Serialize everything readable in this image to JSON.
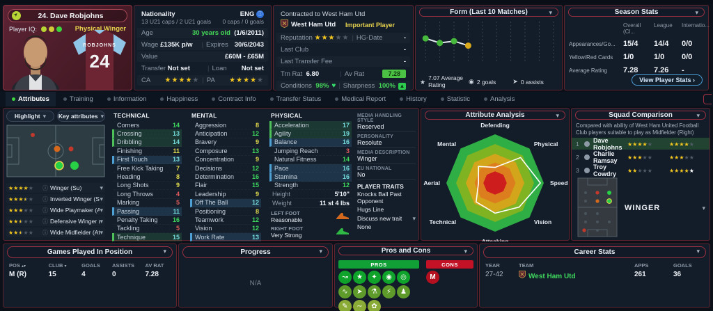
{
  "player_card": {
    "name": "24. Dave Robjohns",
    "iq_label": "Player IQ:",
    "iq_dots": [
      "#b8d435",
      "#d2c838",
      "#3cd43c"
    ],
    "role": "Physical Winger",
    "shirt_name": "ROBJOHNS",
    "shirt_number": "24"
  },
  "info_panel": {
    "nationality_label": "Nationality",
    "u21_caps": "13 U21 caps / 2 U21 goals",
    "nation_code": "ENG",
    "senior_caps": "0 caps / 0 goals",
    "age_label": "Age",
    "age": "30 years old",
    "dob": "(1/6/2011)",
    "wage_label": "Wage",
    "wage": "£135K p/w",
    "expires_label": "Expires",
    "expires": "30/6/2043",
    "value_label": "Value",
    "value": "£60M - £65M",
    "transfer_label": "Transfer",
    "transfer": "Not set",
    "loan_label": "Loan",
    "loan": "Not set",
    "ca_label": "CA",
    "ca_stars": 4,
    "pa_label": "PA",
    "pa_stars": 4,
    "stars_max": 5
  },
  "contract_panel": {
    "header": "Contracted to West Ham Utd",
    "club": "West Ham Utd",
    "status": "Important Player",
    "reputation_label": "Reputation",
    "reputation_stars": 3,
    "hg_label": "HG-Date",
    "hg_value": "-",
    "last_club_label": "Last Club",
    "last_club_value": "-",
    "last_fee_label": "Last Transfer Fee",
    "last_fee_value": "-",
    "trn_rat_label": "Trn Rat",
    "trn_rat": "6.80",
    "av_rat_label": "Av Rat",
    "av_rat": "7.28",
    "conditions_label": "Conditions",
    "conditions": "98%",
    "sharpness_label": "Sharpness",
    "sharpness": "100%"
  },
  "form_panel": {
    "title": "Form (Last 10 Matches)",
    "avg_rating": "7.07 Average Rating",
    "goals": "2 goals",
    "assists": "0 assists"
  },
  "season_stats": {
    "title": "Season Stats",
    "columns": [
      "Overall (Cl...",
      "League",
      "Internatio..."
    ],
    "rows": [
      {
        "label": "Appearances/Go...",
        "values": [
          "15/4",
          "14/4",
          "0/0"
        ]
      },
      {
        "label": "Yellow/Red Cards",
        "values": [
          "1/0",
          "1/0",
          "0/0"
        ]
      },
      {
        "label": "Average Rating",
        "values": [
          "7.28",
          "7.26",
          "-"
        ]
      }
    ],
    "button": "View Player Stats ›"
  },
  "tabs": [
    {
      "label": "Attributes",
      "active": true
    },
    {
      "label": "Training"
    },
    {
      "label": "Information"
    },
    {
      "label": "Happiness"
    },
    {
      "label": "Contract Info"
    },
    {
      "label": "Transfer Status"
    },
    {
      "label": "Medical Report"
    },
    {
      "label": "History"
    },
    {
      "label": "Statistic"
    },
    {
      "label": "Analysis"
    }
  ],
  "left_panel": {
    "highlight": "Highlight",
    "key_attributes": "Key attributes",
    "positions": [
      {
        "stars": 4,
        "half": 0,
        "label": "Winger (Su)"
      },
      {
        "stars": 3,
        "half": 1,
        "label": "Inverted Winger (Su)"
      },
      {
        "stars": 3,
        "half": 0,
        "label": "Wide Playmaker (At)"
      },
      {
        "stars": 2,
        "half": 1,
        "label": "Defensive Winger (Su)"
      },
      {
        "stars": 2,
        "half": 1,
        "label": "Wide Midfielder (At)"
      }
    ]
  },
  "attributes": {
    "technical_title": "TECHNICAL",
    "technical": [
      {
        "name": "Corners",
        "value": 14
      },
      {
        "name": "Crossing",
        "value": 13,
        "hl": "green"
      },
      {
        "name": "Dribbling",
        "value": 14,
        "hl": "green"
      },
      {
        "name": "Finishing",
        "value": 11
      },
      {
        "name": "First Touch",
        "value": 13,
        "hl": "blue"
      },
      {
        "name": "Free Kick Taking",
        "value": 7
      },
      {
        "name": "Heading",
        "value": 8
      },
      {
        "name": "Long Shots",
        "value": 9
      },
      {
        "name": "Long Throws",
        "value": 4
      },
      {
        "name": "Marking",
        "value": 5
      },
      {
        "name": "Passing",
        "value": 11,
        "hl": "blue"
      },
      {
        "name": "Penalty Taking",
        "value": 16
      },
      {
        "name": "Tackling",
        "value": 5
      },
      {
        "name": "Technique",
        "value": 15,
        "hl": "green"
      }
    ],
    "mental_title": "MENTAL",
    "mental": [
      {
        "name": "Aggression",
        "value": 8
      },
      {
        "name": "Anticipation",
        "value": 12
      },
      {
        "name": "Bravery",
        "value": 9
      },
      {
        "name": "Composure",
        "value": 13
      },
      {
        "name": "Concentration",
        "value": 9
      },
      {
        "name": "Decisions",
        "value": 12
      },
      {
        "name": "Determination",
        "value": 16
      },
      {
        "name": "Flair",
        "value": 15
      },
      {
        "name": "Leadership",
        "value": 9
      },
      {
        "name": "Off The Ball",
        "value": 12,
        "hl": "blue"
      },
      {
        "name": "Positioning",
        "value": 8
      },
      {
        "name": "Teamwork",
        "value": 12
      },
      {
        "name": "Vision",
        "value": 12
      },
      {
        "name": "Work Rate",
        "value": 13,
        "hl": "blue"
      }
    ],
    "physical_title": "PHYSICAL",
    "physical": [
      {
        "name": "Acceleration",
        "value": 17,
        "hl": "green"
      },
      {
        "name": "Agility",
        "value": 19,
        "hl": "green"
      },
      {
        "name": "Balance",
        "value": 16,
        "hl": "blue"
      },
      {
        "name": "Jumping Reach",
        "value": 3
      },
      {
        "name": "Natural Fitness",
        "value": 14
      },
      {
        "name": "Pace",
        "value": 16,
        "hl": "blue"
      },
      {
        "name": "Stamina",
        "value": 16,
        "hl": "blue"
      },
      {
        "name": "Strength",
        "value": 12
      }
    ],
    "height_label": "Height",
    "height": "5'10\"",
    "weight_label": "Weight",
    "weight": "11 st 4 lbs",
    "left_foot_label": "LEFT FOOT",
    "left_foot": "Reasonable",
    "right_foot_label": "RIGHT FOOT",
    "right_foot": "Very Strong"
  },
  "media_panel": {
    "media_style_label": "MEDIA HANDLING STYLE",
    "media_style": "Reserved",
    "personality_label": "PERSONALITY",
    "personality": "Resolute",
    "media_desc_label": "MEDIA DESCRIPTION",
    "media_desc": "Winger",
    "eu_label": "EU NATIONAL",
    "eu": "No",
    "traits_label": "PLAYER TRAITS",
    "traits": [
      "Knocks Ball Past Opponent",
      "Hugs Line"
    ],
    "discuss": "Discuss new trait",
    "none": "None"
  },
  "radar_panel": {
    "title": "Attribute Analysis"
  },
  "chart_data": [
    {
      "type": "line",
      "title": "Form (Last 10 Matches)",
      "x_slots": 10,
      "x": [
        1,
        2,
        3,
        4
      ],
      "ratings": [
        7.3,
        7.05,
        7.15,
        6.9
      ],
      "point_colors": [
        "#46b83c",
        "#46b83c",
        "#46b83c",
        "#d9a91c"
      ],
      "ylim": [
        6.0,
        8.0
      ],
      "grid": "vertical-dashed",
      "summary": {
        "average_rating": 7.07,
        "goals": 2,
        "assists": 0
      }
    },
    {
      "type": "radar",
      "title": "Attribute Analysis",
      "axes": [
        "Defending",
        "Physical",
        "Speed",
        "Vision",
        "Attacking",
        "Technical",
        "Aerial",
        "Mental"
      ],
      "values_fraction": [
        0.32,
        0.74,
        0.93,
        0.7,
        0.62,
        0.55,
        0.34,
        0.48
      ],
      "band_fractions": [
        1,
        0.8,
        0.6,
        0.42,
        0.24
      ],
      "band_colors": [
        "#2fae46",
        "#7fb321",
        "#d2a51a",
        "#dd7e1e",
        "#cd1d1d"
      ],
      "value_line_color": "#ffffff"
    }
  ],
  "squad_panel": {
    "title": "Squad Comparison",
    "description": "Compared with ability of West Ham United Football Club players suitable to play as Midfielder (Right)",
    "stars_max": 5,
    "rows": [
      {
        "rank": "1",
        "name": "Dave Robjohns",
        "ca": 4,
        "pa": 4,
        "pa_white": 0,
        "highlight": true
      },
      {
        "rank": "2",
        "name": "Charlie Ramsay",
        "ca": 3,
        "pa": 3,
        "pa_white": 0,
        "highlight": false
      },
      {
        "rank": "3",
        "name": "Troy Cowdry",
        "ca": 2,
        "pa": 4,
        "pa_white": 1,
        "highlight": false
      }
    ],
    "position_label": "WINGER"
  },
  "games_panel": {
    "title": "Games Played In Position",
    "headers": [
      "POS",
      "CLUB",
      "GOALS",
      "ASSISTS",
      "AV RAT"
    ],
    "rows": [
      [
        "M (R)",
        "15",
        "4",
        "0",
        "7.28"
      ]
    ]
  },
  "progress_panel": {
    "title": "Progress",
    "empty": "N/A"
  },
  "proscons_panel": {
    "title": "Pros and Cons",
    "pros_label": "PROS",
    "cons_label": "CONS",
    "pros_icons": [
      {
        "name": "run-icon",
        "glyph": "↝",
        "tier": 1
      },
      {
        "name": "star-icon",
        "glyph": "★",
        "tier": 1
      },
      {
        "name": "flair-icon",
        "glyph": "✦",
        "tier": 1
      },
      {
        "name": "finishing-icon",
        "glyph": "◉",
        "tier": 1
      },
      {
        "name": "target-icon",
        "glyph": "◎",
        "tier": 1
      },
      {
        "name": "dribbling-icon",
        "glyph": "∿",
        "tier": 2
      },
      {
        "name": "pace-icon",
        "glyph": "➤",
        "tier": 2
      },
      {
        "name": "technique-icon",
        "glyph": "⚗",
        "tier": 2
      },
      {
        "name": "energy-icon",
        "glyph": "⚡",
        "tier": 2
      },
      {
        "name": "agility-icon",
        "glyph": "♟",
        "tier": 2
      },
      {
        "name": "report-icon",
        "glyph": "✎",
        "tier": 3
      },
      {
        "name": "trend-icon",
        "glyph": "∼",
        "tier": 3
      },
      {
        "name": "growth-icon",
        "glyph": "✿",
        "tier": 3
      }
    ],
    "cons_icons": [
      {
        "name": "weakness-icon",
        "glyph": "M"
      }
    ]
  },
  "career_panel": {
    "title": "Career Stats",
    "headers": [
      "YEAR",
      "TEAM",
      "APPS",
      "GOALS"
    ],
    "rows": [
      {
        "year": "27-42",
        "team": "West Ham Utd",
        "apps": "261",
        "goals": "36"
      }
    ]
  }
}
